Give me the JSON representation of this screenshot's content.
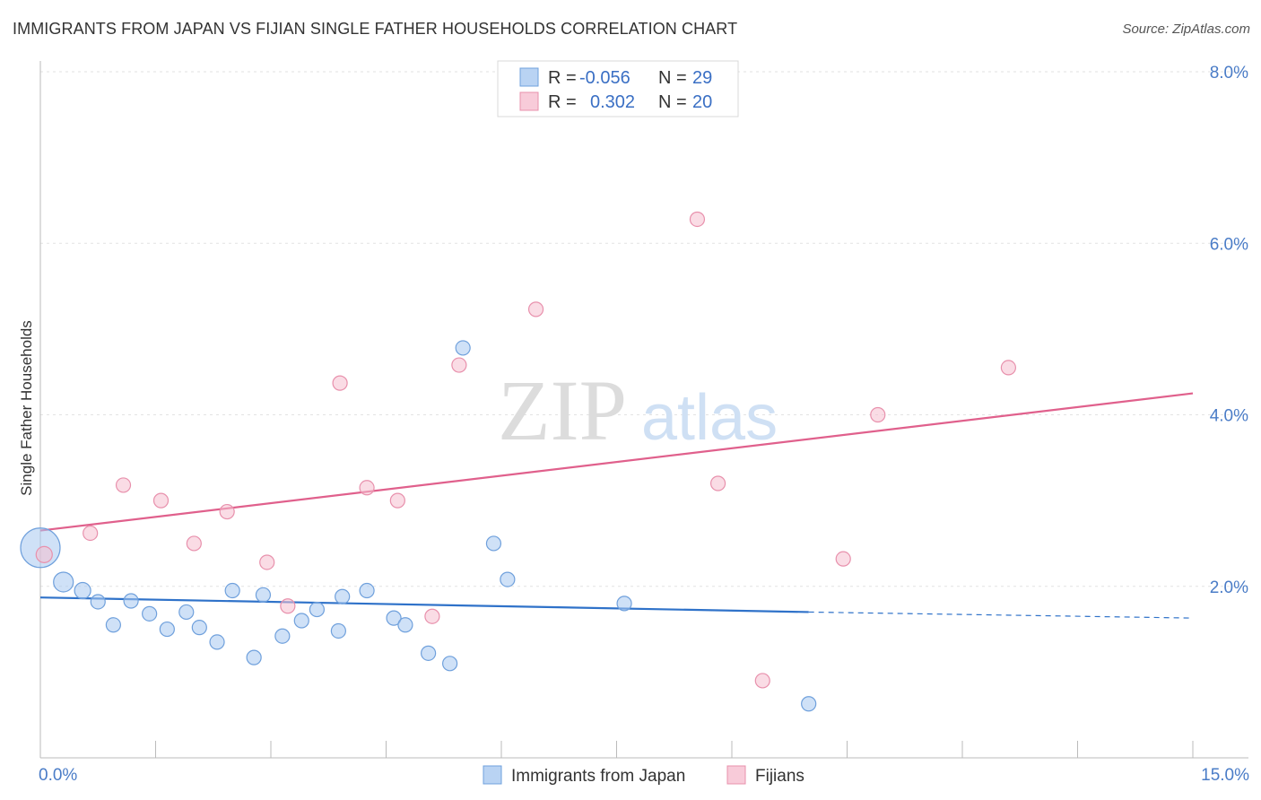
{
  "title": "IMMIGRANTS FROM JAPAN VS FIJIAN SINGLE FATHER HOUSEHOLDS CORRELATION CHART",
  "source": "Source: ZipAtlas.com",
  "watermark": {
    "zip": "ZIP",
    "atlas": "atlas"
  },
  "chart_data": {
    "type": "scatter",
    "title": "IMMIGRANTS FROM JAPAN VS FIJIAN SINGLE FATHER HOUSEHOLDS CORRELATION CHART",
    "xlabel": "",
    "ylabel": "Single Father Households",
    "xlim": [
      0,
      15
    ],
    "ylim": [
      0,
      8
    ],
    "x_tick_labels": [
      "0.0%",
      "15.0%"
    ],
    "y_ticks": [
      2,
      4,
      6,
      8
    ],
    "y_tick_labels": [
      "2.0%",
      "4.0%",
      "6.0%",
      "8.0%"
    ],
    "grid": true,
    "legend_placement": "top-center",
    "stats": [
      {
        "r_label": "R =",
        "r": "-0.056",
        "n_label": "N =",
        "n": "29"
      },
      {
        "r_label": "R =",
        "r": "0.302",
        "n_label": "N =",
        "n": "20"
      }
    ],
    "series": [
      {
        "name": "Immigrants from Japan",
        "color": "#a8c8f0",
        "edge": "#6fa0dc",
        "line_color": "#2f72c9",
        "trend": {
          "x": [
            0,
            10.0
          ],
          "y": [
            1.87,
            1.7
          ],
          "dash_to_x": 15,
          "dash_to_y": 1.63
        },
        "points": [
          {
            "x": 0.0,
            "y": 2.45,
            "s": 22
          },
          {
            "x": 0.3,
            "y": 2.05,
            "s": 11
          },
          {
            "x": 0.55,
            "y": 1.95,
            "s": 9
          },
          {
            "x": 0.75,
            "y": 1.82,
            "s": 8
          },
          {
            "x": 0.95,
            "y": 1.55,
            "s": 8
          },
          {
            "x": 1.18,
            "y": 1.83,
            "s": 8
          },
          {
            "x": 1.42,
            "y": 1.68,
            "s": 8
          },
          {
            "x": 1.65,
            "y": 1.5,
            "s": 8
          },
          {
            "x": 1.9,
            "y": 1.7,
            "s": 8
          },
          {
            "x": 2.07,
            "y": 1.52,
            "s": 8
          },
          {
            "x": 2.3,
            "y": 1.35,
            "s": 8
          },
          {
            "x": 2.5,
            "y": 1.95,
            "s": 8
          },
          {
            "x": 2.78,
            "y": 1.17,
            "s": 8
          },
          {
            "x": 2.9,
            "y": 1.9,
            "s": 8
          },
          {
            "x": 3.15,
            "y": 1.42,
            "s": 8
          },
          {
            "x": 3.4,
            "y": 1.6,
            "s": 8
          },
          {
            "x": 3.6,
            "y": 1.73,
            "s": 8
          },
          {
            "x": 3.88,
            "y": 1.48,
            "s": 8
          },
          {
            "x": 3.93,
            "y": 1.88,
            "s": 8
          },
          {
            "x": 4.25,
            "y": 1.95,
            "s": 8
          },
          {
            "x": 4.6,
            "y": 1.63,
            "s": 8
          },
          {
            "x": 4.75,
            "y": 1.55,
            "s": 8
          },
          {
            "x": 5.05,
            "y": 1.22,
            "s": 8
          },
          {
            "x": 5.33,
            "y": 1.1,
            "s": 8
          },
          {
            "x": 5.5,
            "y": 4.78,
            "s": 8
          },
          {
            "x": 5.9,
            "y": 2.5,
            "s": 8
          },
          {
            "x": 6.08,
            "y": 2.08,
            "s": 8
          },
          {
            "x": 7.6,
            "y": 1.8,
            "s": 8
          },
          {
            "x": 10.0,
            "y": 0.63,
            "s": 8
          }
        ]
      },
      {
        "name": "Fijians",
        "color": "#f6c0d0",
        "edge": "#e890ac",
        "line_color": "#e0608c",
        "trend": {
          "x": [
            0,
            15
          ],
          "y": [
            2.65,
            4.25
          ]
        },
        "points": [
          {
            "x": 0.05,
            "y": 2.37,
            "s": 9
          },
          {
            "x": 0.65,
            "y": 2.62,
            "s": 8
          },
          {
            "x": 1.08,
            "y": 3.18,
            "s": 8
          },
          {
            "x": 1.57,
            "y": 3.0,
            "s": 8
          },
          {
            "x": 2.0,
            "y": 2.5,
            "s": 8
          },
          {
            "x": 2.43,
            "y": 2.87,
            "s": 8
          },
          {
            "x": 2.95,
            "y": 2.28,
            "s": 8
          },
          {
            "x": 3.22,
            "y": 1.77,
            "s": 8
          },
          {
            "x": 3.9,
            "y": 4.37,
            "s": 8
          },
          {
            "x": 4.25,
            "y": 3.15,
            "s": 8
          },
          {
            "x": 4.65,
            "y": 3.0,
            "s": 8
          },
          {
            "x": 5.1,
            "y": 1.65,
            "s": 8
          },
          {
            "x": 5.45,
            "y": 4.58,
            "s": 8
          },
          {
            "x": 6.45,
            "y": 5.23,
            "s": 8
          },
          {
            "x": 8.55,
            "y": 6.28,
            "s": 8
          },
          {
            "x": 8.82,
            "y": 3.2,
            "s": 8
          },
          {
            "x": 9.4,
            "y": 0.9,
            "s": 8
          },
          {
            "x": 10.45,
            "y": 2.32,
            "s": 8
          },
          {
            "x": 10.9,
            "y": 4.0,
            "s": 8
          },
          {
            "x": 12.6,
            "y": 4.55,
            "s": 8
          }
        ]
      }
    ]
  }
}
